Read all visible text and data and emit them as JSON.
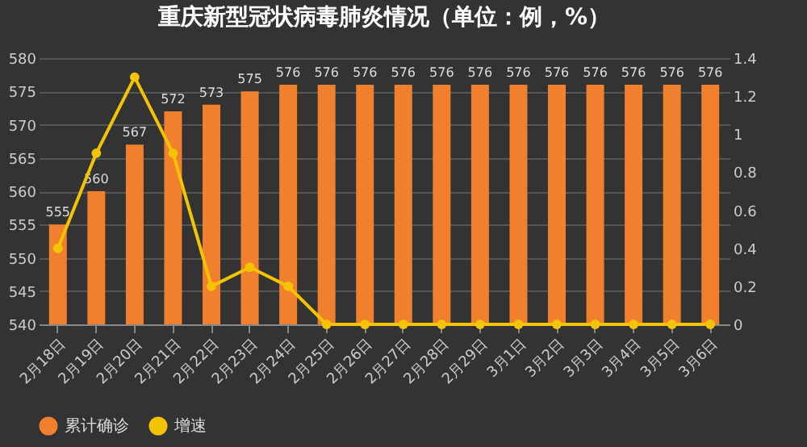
{
  "chart_data": {
    "type": "bar",
    "title": "重庆新型冠状病毒肺炎情况（单位：例，%）",
    "categories": [
      "2月18日",
      "2月19日",
      "2月20日",
      "2月21日",
      "2月22日",
      "2月23日",
      "2月24日",
      "2月25日",
      "2月26日",
      "2月27日",
      "2月28日",
      "2月29日",
      "3月1日",
      "3月2日",
      "3月3日",
      "3月4日",
      "3月5日",
      "3月6日"
    ],
    "series": [
      {
        "name": "累计确诊",
        "color": "#f07f2e",
        "values": [
          555,
          560,
          567,
          572,
          573,
          575,
          576,
          576,
          576,
          576,
          576,
          576,
          576,
          576,
          576,
          576,
          576,
          576
        ],
        "value_labels": [
          "555",
          "560",
          "567",
          "572",
          "573",
          "575",
          "576",
          "576",
          "576",
          "576",
          "576",
          "576",
          "576",
          "576",
          "576",
          "576",
          "576",
          "576"
        ]
      },
      {
        "name": "增速",
        "type": "line",
        "axis": "y2",
        "color": "#f5c400",
        "values": [
          0.4,
          0.9,
          1.3,
          0.9,
          0.2,
          0.3,
          0.2,
          0,
          0,
          0,
          0,
          0,
          0,
          0,
          0,
          0,
          0,
          0
        ]
      }
    ],
    "ylim": [
      540,
      580
    ],
    "yticks": [
      540,
      545,
      550,
      555,
      560,
      565,
      570,
      575,
      580
    ],
    "y2lim": [
      0,
      1.4
    ],
    "y2ticks": [
      0,
      0.2,
      0.4,
      0.6,
      0.8,
      1,
      1.2,
      1.4
    ],
    "grid": "y",
    "legend": "bottom",
    "marker": "circle"
  }
}
